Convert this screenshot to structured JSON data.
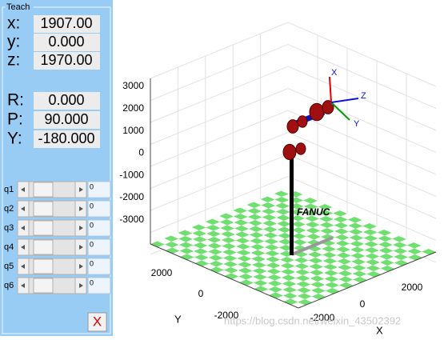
{
  "panel": {
    "title": "Teach",
    "position": [
      {
        "label": "x:",
        "value": "1907.00"
      },
      {
        "label": "y:",
        "value": "0.000"
      },
      {
        "label": "z:",
        "value": "1970.00"
      }
    ],
    "orientation": [
      {
        "label": "R:",
        "value": "0.000"
      },
      {
        "label": "P:",
        "value": "90.000"
      },
      {
        "label": "Y:",
        "value": "-180.000"
      }
    ],
    "joints": [
      {
        "label": "q1",
        "value": "0"
      },
      {
        "label": "q2",
        "value": "0"
      },
      {
        "label": "q3",
        "value": "0"
      },
      {
        "label": "q4",
        "value": "0"
      },
      {
        "label": "q5",
        "value": "0"
      },
      {
        "label": "q6",
        "value": "0"
      }
    ],
    "close": "X"
  },
  "plot": {
    "z_ticks": [
      "3000",
      "2000",
      "1000",
      "0",
      "-1000",
      "-2000",
      "-3000"
    ],
    "y_ticks": [
      "2000",
      "0",
      "-2000"
    ],
    "y_label": "Y",
    "x_ticks": [
      "-2000",
      "0",
      "2000"
    ],
    "x_label": "X",
    "robot_label": "FANUC",
    "frame_labels": [
      "X",
      "Y",
      "Z"
    ]
  },
  "watermark": "https://blog.csdn.net/weixin_43502392"
}
